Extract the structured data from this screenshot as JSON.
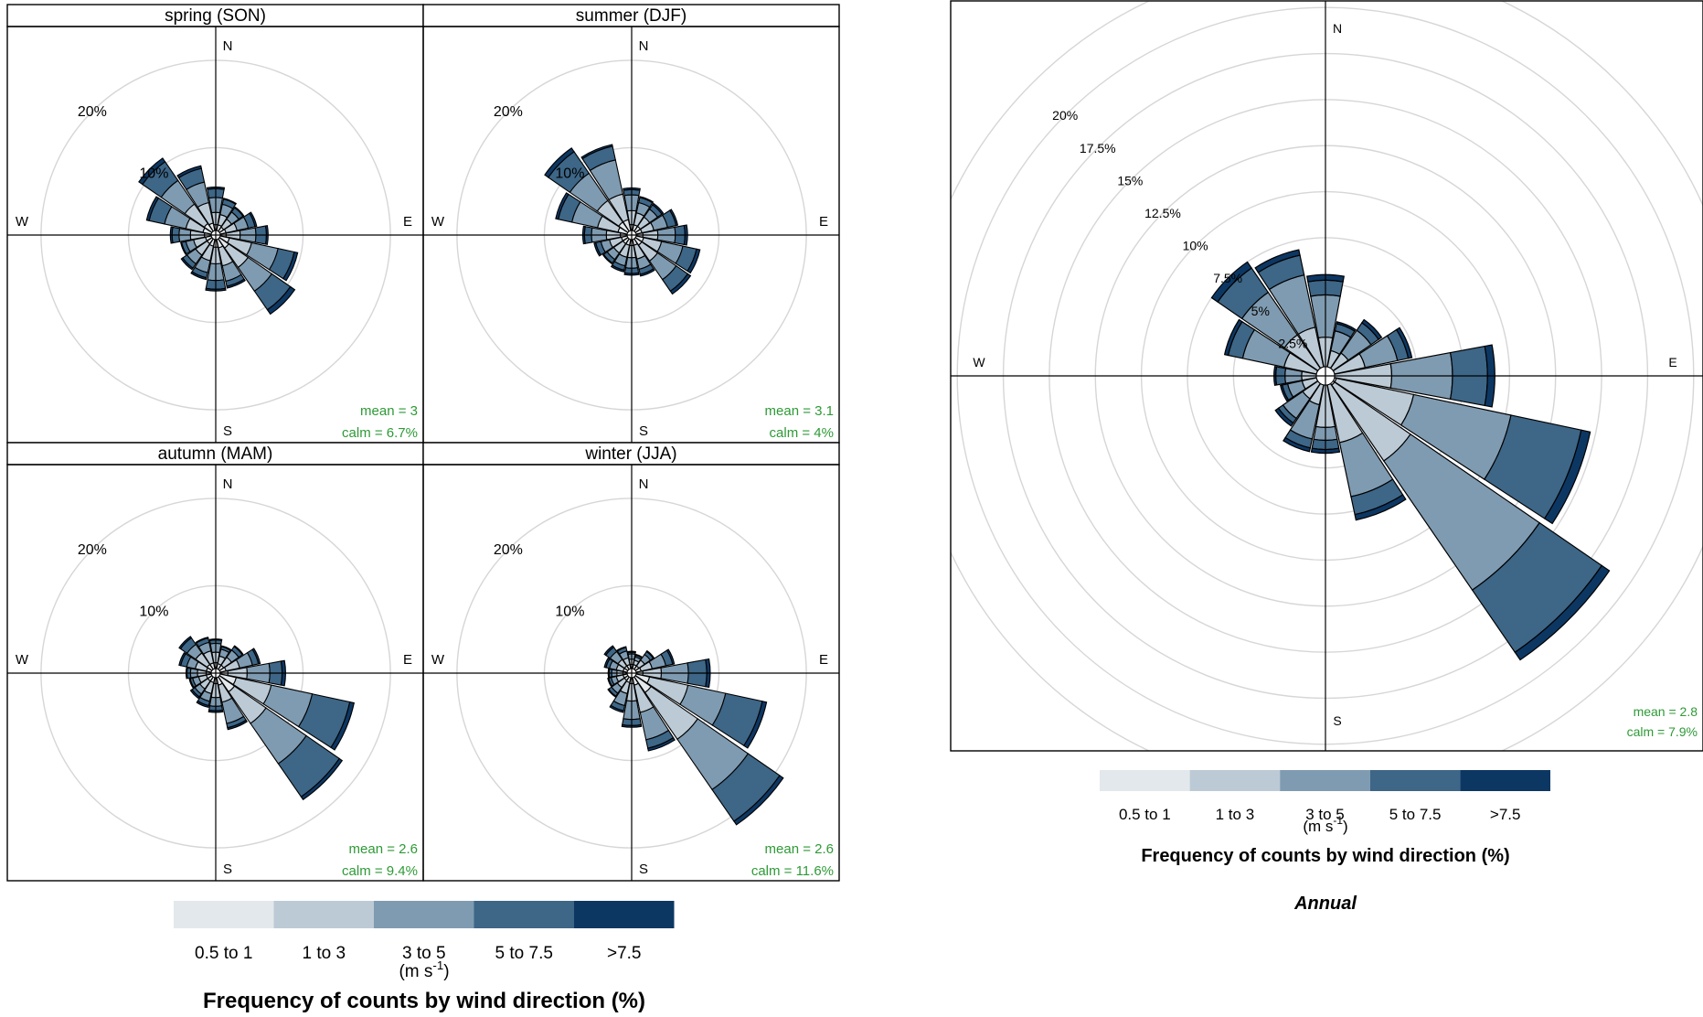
{
  "colors": {
    "bins": [
      "#e3e8ec",
      "#bccad5",
      "#7f9bb1",
      "#3d6687",
      "#0d3763"
    ],
    "stat_text": "#2e9a36",
    "grid": "#d6d6d6"
  },
  "compass": {
    "n": "N",
    "e": "E",
    "s": "S",
    "w": "W"
  },
  "legend": {
    "items": [
      "0.5 to 1",
      "1 to 3",
      "3 to 5",
      "5 to 7.5",
      ">7.5"
    ],
    "unit_prefix": "(m s",
    "unit_exp": "-1",
    "unit_suffix": ")",
    "title": "Frequency of counts by wind direction (%)"
  },
  "annual_label": "Annual",
  "chart_data": [
    {
      "type": "wind-rose",
      "title": "spring (SON)",
      "directions_deg": [
        0,
        22.5,
        45,
        67.5,
        90,
        112.5,
        135,
        157.5,
        180,
        202.5,
        225,
        247.5,
        270,
        292.5,
        315,
        337.5
      ],
      "speed_bins": [
        "0.5 to 1",
        "1 to 3",
        "3 to 5",
        "5 to 7.5",
        ">7.5"
      ],
      "cumulative_pct": [
        [
          1.2,
          2.6,
          4.3,
          5.3,
          5.5
        ],
        [
          1.2,
          2.4,
          3.6,
          4.2,
          4.3
        ],
        [
          1.1,
          2.2,
          3.2,
          3.8,
          3.9
        ],
        [
          1.2,
          2.5,
          3.8,
          4.6,
          4.8
        ],
        [
          1.2,
          2.8,
          4.6,
          5.8,
          6.0
        ],
        [
          1.6,
          4.2,
          7.3,
          9.2,
          9.6
        ],
        [
          1.8,
          4.5,
          7.8,
          10.4,
          11.0
        ],
        [
          1.5,
          3.6,
          5.4,
          6.0,
          6.2
        ],
        [
          1.4,
          3.3,
          5.2,
          6.2,
          6.4
        ],
        [
          1.3,
          3.0,
          4.4,
          5.0,
          5.2
        ],
        [
          1.2,
          2.8,
          4.0,
          4.6,
          4.8
        ],
        [
          1.2,
          2.6,
          3.5,
          4.0,
          4.1
        ],
        [
          1.3,
          2.9,
          4.2,
          5.0,
          5.2
        ],
        [
          1.5,
          3.5,
          6.0,
          7.8,
          8.1
        ],
        [
          1.6,
          4.3,
          7.6,
          10.2,
          10.7
        ],
        [
          1.4,
          3.8,
          6.2,
          7.8,
          8.1
        ]
      ],
      "rmax_pct": 22.5,
      "grid_pct": [
        10,
        20
      ],
      "ring_labels": [
        "10%",
        "20%"
      ],
      "mean": "mean = 3",
      "calm": "calm = 6.7%"
    },
    {
      "type": "wind-rose",
      "title": "summer (DJF)",
      "directions_deg": [
        0,
        22.5,
        45,
        67.5,
        90,
        112.5,
        135,
        157.5,
        180,
        202.5,
        225,
        247.5,
        270,
        292.5,
        315,
        337.5
      ],
      "speed_bins": [
        "0.5 to 1",
        "1 to 3",
        "3 to 5",
        "5 to 7.5",
        ">7.5"
      ],
      "cumulative_pct": [
        [
          1.2,
          2.8,
          4.6,
          5.2,
          5.4
        ],
        [
          1.2,
          2.6,
          3.8,
          4.4,
          4.5
        ],
        [
          1.2,
          2.5,
          3.6,
          4.2,
          4.4
        ],
        [
          1.2,
          2.6,
          4.2,
          5.2,
          5.4
        ],
        [
          1.3,
          3.0,
          5.0,
          6.1,
          6.4
        ],
        [
          1.4,
          3.5,
          6.0,
          7.6,
          8.0
        ],
        [
          1.4,
          3.6,
          6.2,
          7.8,
          8.2
        ],
        [
          1.2,
          2.8,
          4.0,
          4.6,
          4.8
        ],
        [
          1.2,
          2.6,
          3.8,
          4.4,
          4.6
        ],
        [
          1.2,
          2.6,
          3.6,
          4.1,
          4.3
        ],
        [
          1.2,
          2.5,
          3.4,
          3.9,
          4.0
        ],
        [
          1.2,
          2.6,
          3.6,
          4.2,
          4.4
        ],
        [
          1.3,
          2.9,
          4.6,
          5.4,
          5.6
        ],
        [
          1.6,
          4.0,
          7.0,
          8.6,
          8.9
        ],
        [
          1.8,
          4.8,
          8.6,
          11.6,
          12.1
        ],
        [
          1.8,
          4.8,
          8.8,
          10.4,
          10.6
        ]
      ],
      "rmax_pct": 22.5,
      "grid_pct": [
        10,
        20
      ],
      "ring_labels": [
        "10%",
        "20%"
      ],
      "mean": "mean = 3.1",
      "calm": "calm = 4%"
    },
    {
      "type": "wind-rose",
      "title": "autumn (MAM)",
      "directions_deg": [
        0,
        22.5,
        45,
        67.5,
        90,
        112.5,
        135,
        157.5,
        180,
        202.5,
        225,
        247.5,
        270,
        292.5,
        315,
        337.5
      ],
      "speed_bins": [
        "0.5 to 1",
        "1 to 3",
        "3 to 5",
        "5 to 7.5",
        ">7.5"
      ],
      "cumulative_pct": [
        [
          1.2,
          2.4,
          3.4,
          3.8,
          3.9
        ],
        [
          1.1,
          2.0,
          2.8,
          3.1,
          3.2
        ],
        [
          1.1,
          2.2,
          3.2,
          3.7,
          3.8
        ],
        [
          1.2,
          2.8,
          4.3,
          5.0,
          5.2
        ],
        [
          1.4,
          3.6,
          6.2,
          7.6,
          8.0
        ],
        [
          2.4,
          6.5,
          11.3,
          15.7,
          16.2
        ],
        [
          2.6,
          7.0,
          12.6,
          17.2,
          17.6
        ],
        [
          1.4,
          3.4,
          5.9,
          6.4,
          6.6
        ],
        [
          1.2,
          2.8,
          3.8,
          4.3,
          4.5
        ],
        [
          1.1,
          2.4,
          3.3,
          3.8,
          4.0
        ],
        [
          1.1,
          2.2,
          2.9,
          3.3,
          3.5
        ],
        [
          1.1,
          2.0,
          2.7,
          3.0,
          3.1
        ],
        [
          1.1,
          2.1,
          2.9,
          3.3,
          3.4
        ],
        [
          1.1,
          2.4,
          3.4,
          4.1,
          4.3
        ],
        [
          1.2,
          2.8,
          4.0,
          4.9,
          5.1
        ],
        [
          1.2,
          2.6,
          3.6,
          4.1,
          4.2
        ]
      ],
      "rmax_pct": 22.5,
      "grid_pct": [
        10,
        20
      ],
      "ring_labels": [
        "10%",
        "20%"
      ],
      "mean": "mean = 2.6",
      "calm": "calm = 9.4%"
    },
    {
      "type": "wind-rose",
      "title": "winter (JJA)",
      "directions_deg": [
        0,
        22.5,
        45,
        67.5,
        90,
        112.5,
        135,
        157.5,
        180,
        202.5,
        225,
        247.5,
        270,
        292.5,
        315,
        337.5
      ],
      "speed_bins": [
        "0.5 to 1",
        "1 to 3",
        "3 to 5",
        "5 to 7.5",
        ">7.5"
      ],
      "cumulative_pct": [
        [
          1.0,
          1.6,
          2.2,
          2.4,
          2.5
        ],
        [
          1.0,
          1.5,
          1.9,
          2.1,
          2.2
        ],
        [
          1.0,
          1.8,
          2.6,
          3.0,
          3.1
        ],
        [
          1.1,
          2.4,
          4.0,
          4.8,
          5.0
        ],
        [
          1.3,
          3.4,
          6.5,
          8.6,
          9.0
        ],
        [
          2.1,
          6.6,
          11.0,
          15.3,
          15.8
        ],
        [
          2.7,
          9.2,
          16.2,
          20.6,
          21.1
        ],
        [
          1.4,
          4.6,
          7.8,
          8.8,
          9.1
        ],
        [
          1.2,
          3.2,
          5.3,
          6.0,
          6.2
        ],
        [
          1.1,
          2.4,
          3.8,
          4.4,
          4.6
        ],
        [
          1.0,
          2.0,
          2.8,
          3.2,
          3.3
        ],
        [
          1.0,
          1.8,
          2.4,
          2.7,
          2.8
        ],
        [
          1.0,
          1.7,
          2.3,
          2.6,
          2.7
        ],
        [
          1.0,
          1.8,
          2.6,
          3.0,
          3.2
        ],
        [
          1.0,
          1.9,
          3.0,
          3.6,
          3.8
        ],
        [
          1.0,
          1.8,
          2.6,
          3.0,
          3.1
        ]
      ],
      "rmax_pct": 22.5,
      "grid_pct": [
        10,
        20
      ],
      "ring_labels": [
        "10%",
        "20%"
      ],
      "mean": "mean = 2.6",
      "calm": "calm = 11.6%"
    },
    {
      "type": "wind-rose",
      "title": "",
      "directions_deg": [
        0,
        22.5,
        45,
        67.5,
        90,
        112.5,
        135,
        157.5,
        180,
        202.5,
        225,
        247.5,
        270,
        292.5,
        315,
        337.5
      ],
      "speed_bins": [
        "0.5 to 1",
        "1 to 3",
        "3 to 5",
        "5 to 7.5",
        ">7.5"
      ],
      "cumulative_pct": [
        [
          0.5,
          2.1,
          4.4,
          5.2,
          5.5
        ],
        [
          0.5,
          1.4,
          2.5,
          2.9,
          3.0
        ],
        [
          0.5,
          1.5,
          3.0,
          3.5,
          3.7
        ],
        [
          0.5,
          2.2,
          4.0,
          4.6,
          4.8
        ],
        [
          0.5,
          3.6,
          6.9,
          8.8,
          9.2
        ],
        [
          0.6,
          4.9,
          10.3,
          14.2,
          14.7
        ],
        [
          0.6,
          5.6,
          14.1,
          18.2,
          18.7
        ],
        [
          0.5,
          3.7,
          6.7,
          7.7,
          8.0
        ],
        [
          0.5,
          2.8,
          3.5,
          4.0,
          4.2
        ],
        [
          0.5,
          1.6,
          3.5,
          4.0,
          4.2
        ],
        [
          0.5,
          1.5,
          2.8,
          3.1,
          3.3
        ],
        [
          0.5,
          1.3,
          2.1,
          2.4,
          2.5
        ],
        [
          0.5,
          1.3,
          2.2,
          2.7,
          2.8
        ],
        [
          0.5,
          2.3,
          4.6,
          5.4,
          5.6
        ],
        [
          0.5,
          2.7,
          5.5,
          7.1,
          7.5
        ],
        [
          0.5,
          2.7,
          5.6,
          6.7,
          7.0
        ]
      ],
      "rmax_pct": 21.5,
      "grid_pct": [
        2.5,
        5,
        7.5,
        10,
        12.5,
        15,
        17.5,
        20,
        22.5
      ],
      "ring_labels": [
        "2.5%",
        "5%",
        "7.5%",
        "10%",
        "12.5%",
        "15%",
        "17.5%",
        "20%"
      ],
      "mean": "mean = 2.8",
      "calm": "calm = 7.9%"
    }
  ]
}
